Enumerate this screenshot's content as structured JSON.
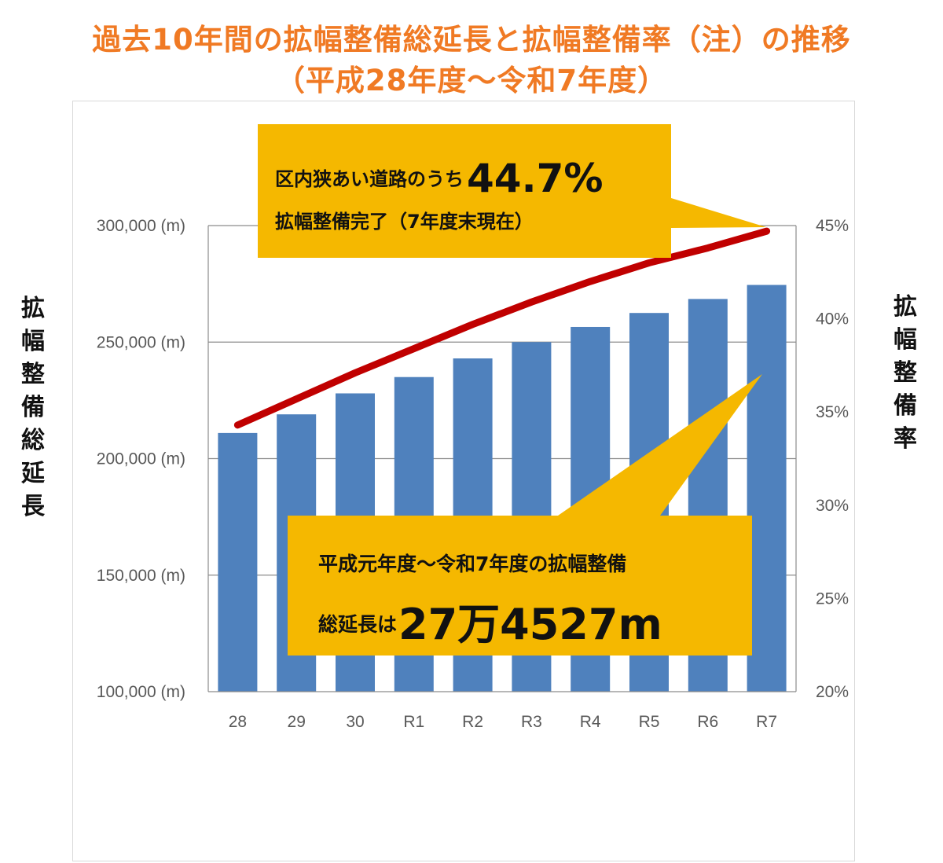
{
  "title_line1": "過去10年間の拡幅整備総延長と拡幅整備率（注）の推移",
  "title_line2": "（平成28年度～令和7年度）",
  "callout_top": {
    "prefix": "区内狭あい道路のうち",
    "highlight": "44.7%",
    "line2": "拡幅整備完了（7年度末現在）"
  },
  "callout_bottom": {
    "line1": "平成元年度～令和7年度の拡幅整備",
    "prefix": "総延長は",
    "highlight": "27万4527m"
  },
  "chart_data": {
    "type": "bar",
    "categories": [
      "28",
      "29",
      "30",
      "R1",
      "R2",
      "R3",
      "R4",
      "R5",
      "R6",
      "R7"
    ],
    "ylabel_left_chars": [
      "拡",
      "幅",
      "整",
      "備",
      "総",
      "延",
      "長"
    ],
    "ylabel_right_chars": [
      "拡",
      "幅",
      "整",
      "備",
      "率"
    ],
    "ylim_left": [
      100000,
      300000
    ],
    "ylim_right": [
      20,
      45
    ],
    "left_ticks": [
      "100,000 (m)",
      "150,000 (m)",
      "200,000 (m)",
      "250,000 (m)",
      "300,000 (m)"
    ],
    "right_ticks": [
      "20%",
      "25%",
      "30%",
      "35%",
      "40%",
      "45%"
    ],
    "grid": true,
    "series": [
      {
        "type": "bar",
        "axis": "left",
        "values": [
          211000,
          219000,
          228000,
          235000,
          243000,
          250000,
          256500,
          262500,
          268500,
          274527
        ],
        "color": "#4f81bd"
      },
      {
        "type": "line",
        "axis": "right",
        "values": [
          34.3,
          35.7,
          37.1,
          38.4,
          39.7,
          40.9,
          42.0,
          43.0,
          43.8,
          44.7
        ],
        "color": "#c00000"
      }
    ]
  },
  "colors": {
    "title": "#f07a24",
    "callout": "#f5b800",
    "bar": "#4f81bd",
    "line": "#c00000"
  }
}
